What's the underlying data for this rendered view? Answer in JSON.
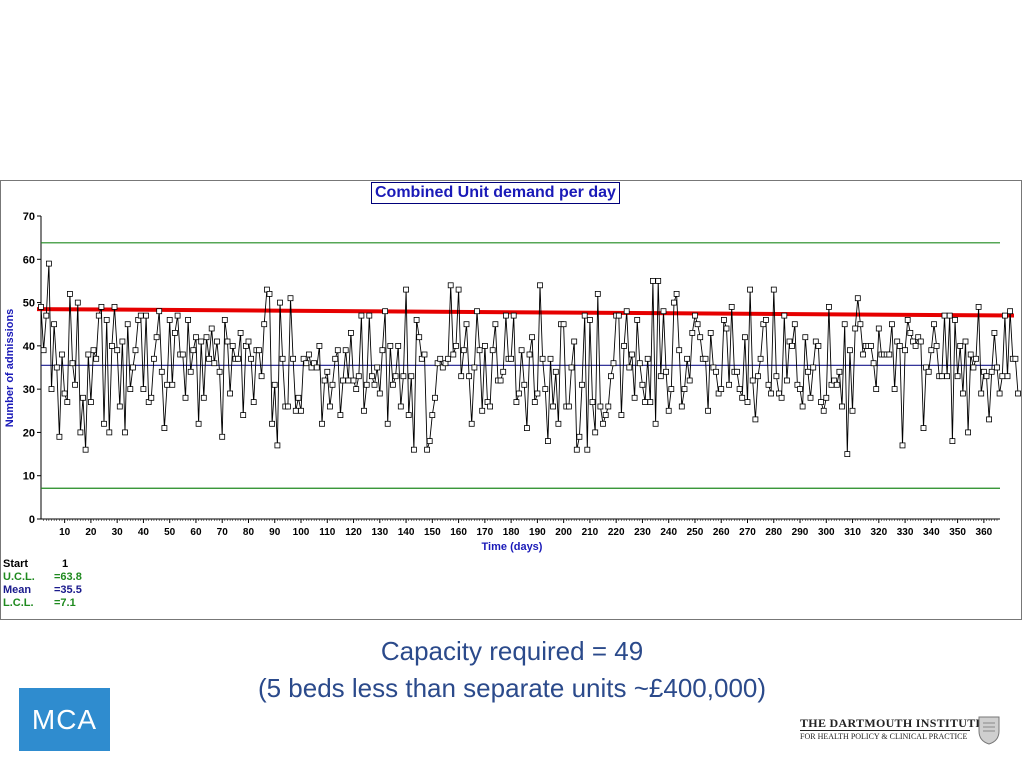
{
  "chart_data": {
    "type": "line",
    "title": "Combined Unit demand per day",
    "xlabel": "Time (days)",
    "ylabel": "Number of admissions",
    "xlim": [
      1,
      365
    ],
    "ylim": [
      0,
      70
    ],
    "y_ticks": [
      "0",
      "10",
      "20",
      "30",
      "40",
      "50",
      "60",
      "70"
    ],
    "x_ticks": [
      "10",
      "20",
      "30",
      "40",
      "50",
      "60",
      "70",
      "80",
      "90",
      "100",
      "110",
      "120",
      "130",
      "140",
      "150",
      "160",
      "170",
      "180",
      "190",
      "200",
      "210",
      "220",
      "230",
      "240",
      "250",
      "260",
      "270",
      "280",
      "290",
      "300",
      "310",
      "320",
      "330",
      "340",
      "350",
      "360"
    ],
    "grid": false,
    "ucl": 63.8,
    "mean": 35.5,
    "lcl": 7.1,
    "capacity_line": {
      "start": 48.5,
      "end": 47
    },
    "series": [
      {
        "values": [
          49,
          39,
          47,
          59,
          30,
          45,
          35,
          19,
          38,
          29,
          27,
          52,
          36,
          31,
          50,
          20,
          28,
          16,
          38,
          27,
          39,
          37,
          47,
          49,
          22,
          46,
          20,
          40,
          49,
          39,
          26,
          41,
          20,
          45,
          30,
          35,
          39,
          46,
          47,
          30,
          47,
          27,
          28,
          37,
          42,
          48,
          34,
          21,
          31,
          46,
          31,
          43,
          47,
          38,
          38,
          28,
          46,
          34,
          39,
          42,
          22,
          41,
          28,
          42,
          37,
          44,
          36,
          41,
          34,
          19,
          46,
          41,
          29,
          40,
          37,
          37,
          43,
          24,
          40,
          41,
          37,
          27,
          39,
          39,
          33,
          45,
          53,
          52,
          22,
          31,
          17,
          50,
          37,
          26,
          26,
          51,
          37,
          25,
          28,
          25,
          37,
          36,
          38,
          35,
          36,
          35,
          40,
          22,
          32,
          34,
          26,
          31,
          37,
          39,
          24,
          32,
          39,
          32,
          43,
          32,
          30,
          33,
          47,
          25,
          31,
          47,
          33,
          31,
          35,
          29,
          39,
          48,
          22,
          40,
          31,
          33,
          40,
          26,
          33,
          53,
          24,
          33,
          16,
          46,
          42,
          37,
          38,
          16,
          18,
          24,
          28,
          36,
          37,
          35,
          36,
          37,
          54,
          38,
          40,
          53,
          33,
          39,
          45,
          33,
          22,
          35,
          48,
          39,
          25,
          40,
          27,
          26,
          39,
          45,
          32,
          32,
          34,
          47,
          37,
          37,
          47,
          27,
          29,
          39,
          31,
          21,
          38,
          42,
          27,
          29,
          54,
          37,
          30,
          18,
          37,
          26,
          34,
          22,
          45,
          45,
          26,
          26,
          35,
          41,
          16,
          19,
          31,
          47,
          16,
          46,
          27,
          20,
          52,
          26,
          22,
          24,
          26,
          33,
          36,
          47,
          47,
          24,
          40,
          48,
          35,
          38,
          28,
          46,
          36,
          31,
          27,
          37,
          27,
          55,
          22,
          55,
          33,
          48,
          34,
          25,
          30,
          50,
          52,
          39,
          26,
          30,
          37,
          32,
          43,
          47,
          45,
          42,
          37,
          37,
          25,
          43,
          35,
          34,
          29,
          30,
          46,
          44,
          31,
          49,
          34,
          34,
          30,
          28,
          42,
          27,
          53,
          32,
          23,
          33,
          37,
          45,
          46,
          31,
          29,
          53,
          33,
          29,
          28,
          47,
          32,
          41,
          40,
          45,
          31,
          30,
          26,
          42,
          34,
          28,
          35,
          41,
          40,
          27,
          25,
          28,
          49,
          31,
          32,
          31,
          34,
          26,
          45,
          15,
          39,
          25,
          44,
          51,
          45,
          38,
          40,
          40,
          40,
          36,
          30,
          44,
          38,
          38,
          38,
          38,
          45,
          30,
          41,
          40,
          17,
          39,
          46,
          43,
          41,
          40,
          42,
          41,
          21,
          35,
          34,
          39,
          45,
          40,
          33,
          33,
          47,
          33,
          47,
          18,
          46,
          33,
          40,
          29,
          41,
          20,
          38,
          35,
          37,
          49,
          29,
          34,
          33,
          23,
          34,
          43,
          35,
          29,
          33,
          47,
          33,
          48,
          37,
          37,
          29
        ]
      }
    ]
  },
  "stats": {
    "start": {
      "label": "Start",
      "value": "1",
      "color": "#000000"
    },
    "ucl": {
      "label": "U.C.L.",
      "value": "=63.8",
      "color": "#1f8a1f"
    },
    "mean": {
      "label": "Mean",
      "value": "=35.5",
      "color": "#1a1a8c"
    },
    "lcl": {
      "label": "L.C.L.",
      "value": "=7.1",
      "color": "#1f8a1f"
    }
  },
  "caption": {
    "line1": "Capacity required = 49",
    "line2": "(5 beds less than separate units ~£400,000)"
  },
  "logos": {
    "mca": "MCA",
    "institute_line1": "THE DARTMOUTH INSTITUTE",
    "institute_line2": "FOR HEALTH POLICY & CLINICAL PRACTICE"
  },
  "colors": {
    "series": "#000000",
    "control_limits": "#1f8a1f",
    "mean": "#1a1a8c",
    "capacity": "#e60000",
    "caption": "#2b4a8b",
    "mca_logo": "#2f8ccf"
  }
}
